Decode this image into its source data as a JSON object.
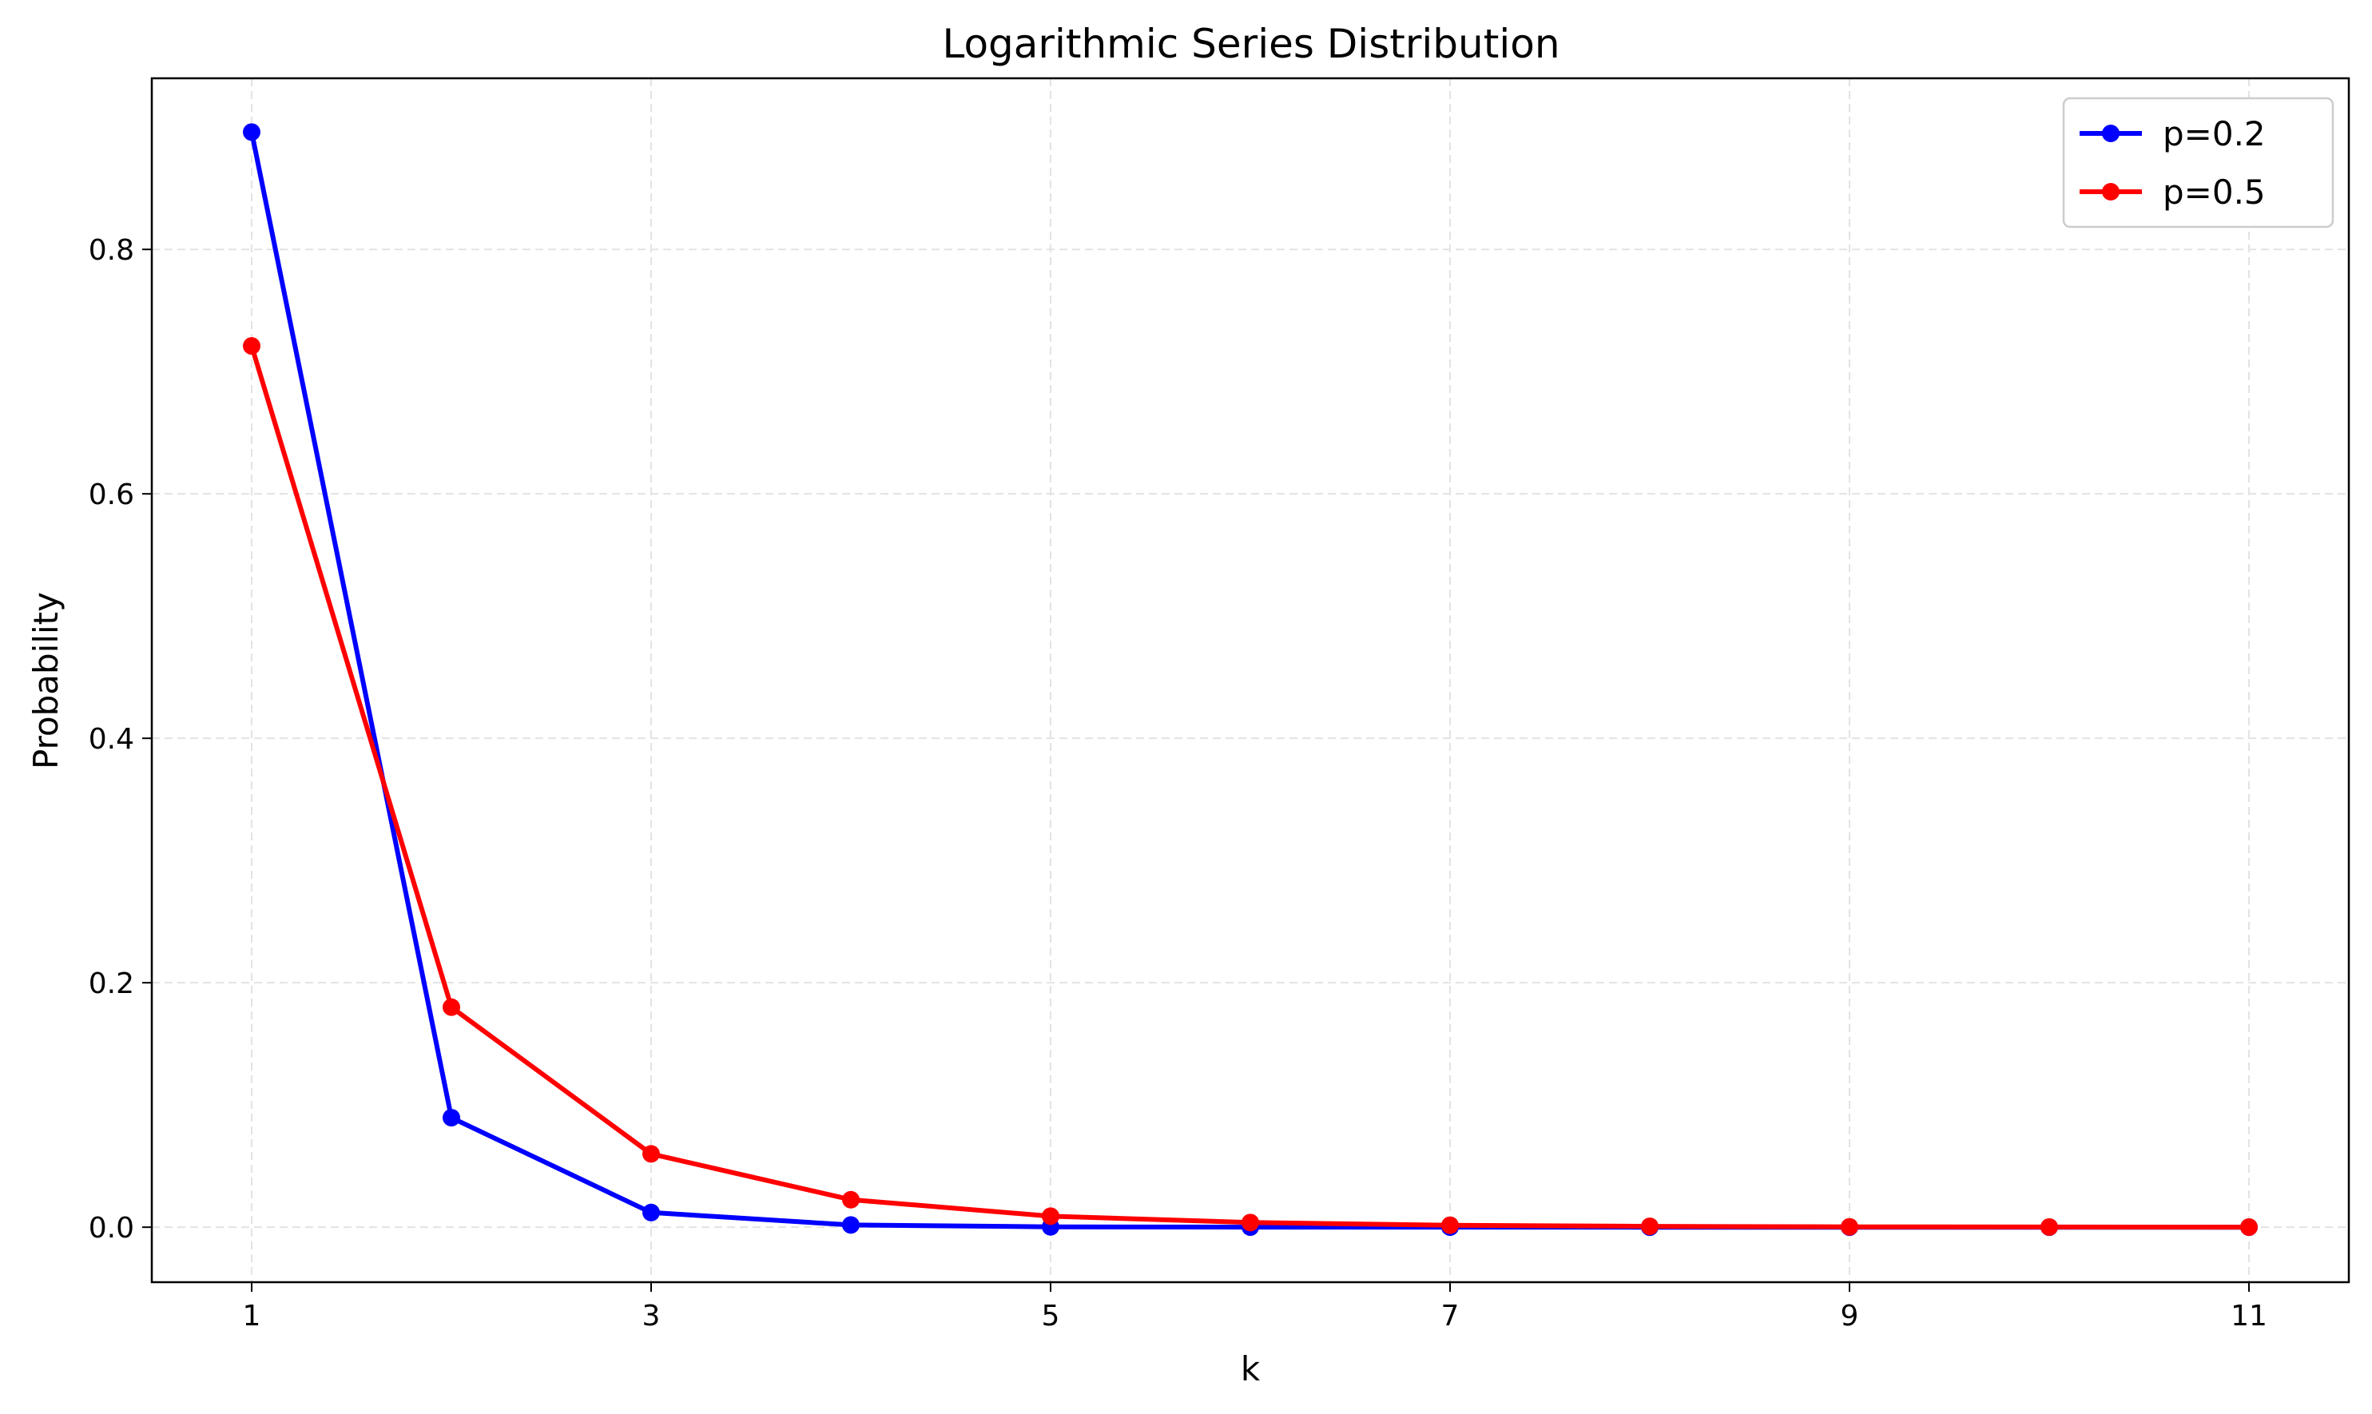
{
  "chart_data": {
    "type": "line",
    "title": "Logarithmic Series Distribution",
    "xlabel": "k",
    "ylabel": "Probability",
    "xlim": [
      0.5,
      11.5
    ],
    "ylim": [
      -0.045,
      0.94
    ],
    "xticks": [
      1,
      3,
      5,
      7,
      9,
      11
    ],
    "xtick_labels": [
      "1",
      "3",
      "5",
      "7",
      "9",
      "11"
    ],
    "yticks": [
      0.0,
      0.2,
      0.4,
      0.6,
      0.8
    ],
    "ytick_labels": [
      "0.0",
      "0.2",
      "0.4",
      "0.6",
      "0.8"
    ],
    "grid": true,
    "legend_position": "top-right",
    "x": [
      1,
      2,
      3,
      4,
      5,
      6,
      7,
      8,
      9,
      10,
      11
    ],
    "series": [
      {
        "name": "p=0.2",
        "color": "#0000ff",
        "values": [
          0.896,
          0.0896,
          0.012,
          0.0018,
          0.0003,
          5e-05,
          1e-05,
          0.0,
          0.0,
          0.0,
          0.0
        ]
      },
      {
        "name": "p=0.5",
        "color": "#ff0000",
        "values": [
          0.721,
          0.18,
          0.06,
          0.0225,
          0.009,
          0.0038,
          0.0016,
          0.0007,
          0.0003,
          0.00014,
          6e-05
        ]
      }
    ]
  }
}
